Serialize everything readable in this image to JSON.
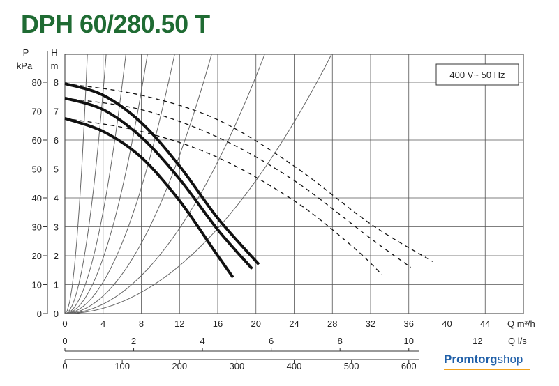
{
  "title": "DPH 60/280.50 T",
  "brand": {
    "part1": "Promtorg",
    "part2": "shop"
  },
  "colors": {
    "title": "#1f6b33",
    "brand": "#1f5fa8",
    "brand_accent": "#f2a21b",
    "curve": "#111111",
    "grid": "#333333"
  },
  "chart_data": {
    "type": "line",
    "legend": "400 V~ 50 Hz",
    "y_left_label": [
      "P",
      "kPa"
    ],
    "y_right_label": [
      "H",
      "m"
    ],
    "x_label": "Q m³/h",
    "x_ticks_m3h": [
      "0",
      "4",
      "8",
      "12",
      "16",
      "20",
      "24",
      "28",
      "32",
      "36",
      "40",
      "44"
    ],
    "x_ticks_ls": [
      "0",
      "2",
      "4",
      "6",
      "8",
      "10",
      "12"
    ],
    "x_ticks_lmin": [
      "0",
      "100",
      "200",
      "300",
      "400",
      "500",
      "600"
    ],
    "x_unit_ls": "Q l/s",
    "y_ticks_kpa": [
      "0",
      "10",
      "20",
      "30",
      "40",
      "50",
      "60",
      "70",
      "80"
    ],
    "y_ticks_m": [
      "0",
      "1",
      "2",
      "3",
      "4",
      "5",
      "6",
      "7",
      "8"
    ],
    "xlim": [
      0,
      48
    ],
    "ylim": [
      0,
      8
    ],
    "grid": true,
    "series": [
      {
        "style": "solid",
        "x": [
          0,
          4,
          8,
          12,
          16,
          20.3
        ],
        "y": [
          7.95,
          7.55,
          6.6,
          5.1,
          3.3,
          1.7
        ]
      },
      {
        "style": "solid",
        "x": [
          0,
          4,
          8,
          12,
          16,
          19.6
        ],
        "y": [
          7.45,
          7.05,
          6.1,
          4.65,
          2.9,
          1.55
        ]
      },
      {
        "style": "solid",
        "x": [
          0,
          4,
          8,
          12,
          16,
          17.6
        ],
        "y": [
          6.75,
          6.3,
          5.4,
          3.9,
          2.0,
          1.25
        ]
      },
      {
        "style": "dashed",
        "x": [
          0,
          8,
          16,
          24,
          32,
          38.5
        ],
        "y": [
          7.95,
          7.55,
          6.7,
          5.1,
          3.1,
          1.8
        ]
      },
      {
        "style": "dashed",
        "x": [
          0,
          8,
          16,
          24,
          32,
          36.2
        ],
        "y": [
          7.45,
          7.05,
          6.1,
          4.6,
          2.6,
          1.6
        ]
      },
      {
        "style": "dashed",
        "x": [
          0,
          8,
          16,
          24,
          30,
          33.2
        ],
        "y": [
          6.75,
          6.3,
          5.4,
          3.9,
          2.35,
          1.35
        ]
      }
    ],
    "system_curves_k": [
      1.62,
      0.48,
      0.22,
      0.12,
      0.068,
      0.038,
      0.0205,
      0.0115
    ]
  }
}
